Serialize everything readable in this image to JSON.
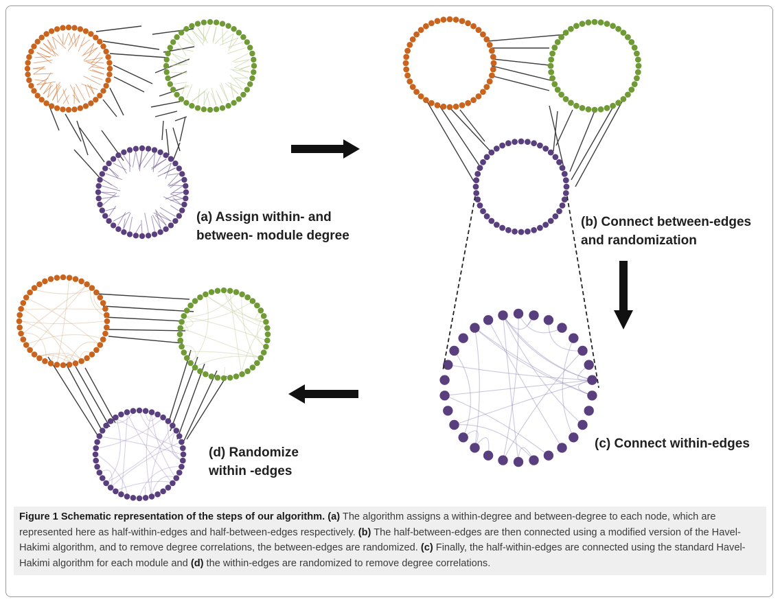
{
  "labels": {
    "a": [
      "(a) Assign within- and",
      "between- module degree"
    ],
    "b": [
      "(b) Connect  between-edges",
      "and randomization"
    ],
    "c": [
      "(c) Connect  within-edges"
    ],
    "d": [
      "(d) Randomize",
      "within -edges"
    ]
  },
  "caption": {
    "title": "Figure 1 Schematic representation of the steps of our algorithm.",
    "a_tag": "(a)",
    "a_text": " The algorithm assigns a within-degree and between-degree to each node, which are represented here as half-within-edges and half-between-edges respectively. ",
    "b_tag": "(b)",
    "b_text": " The half-between-edges are then connected using a modified version of the Havel-Hakimi algorithm, and to remove degree correlations, the between-edges are randomized. ",
    "c_tag": "(c)",
    "c_text": " Finally, the half-within-edges are connected using the standard Havel-Hakimi algorithm for each module and ",
    "d_tag": "(d)",
    "d_text": " the within-edges are randomized to remove degree correlations."
  },
  "colors": {
    "orange": "#c8641e",
    "green": "#6f9a35",
    "purple": "#5a3f7e",
    "edge": "#3c3c3c",
    "arrow": "#111111"
  }
}
